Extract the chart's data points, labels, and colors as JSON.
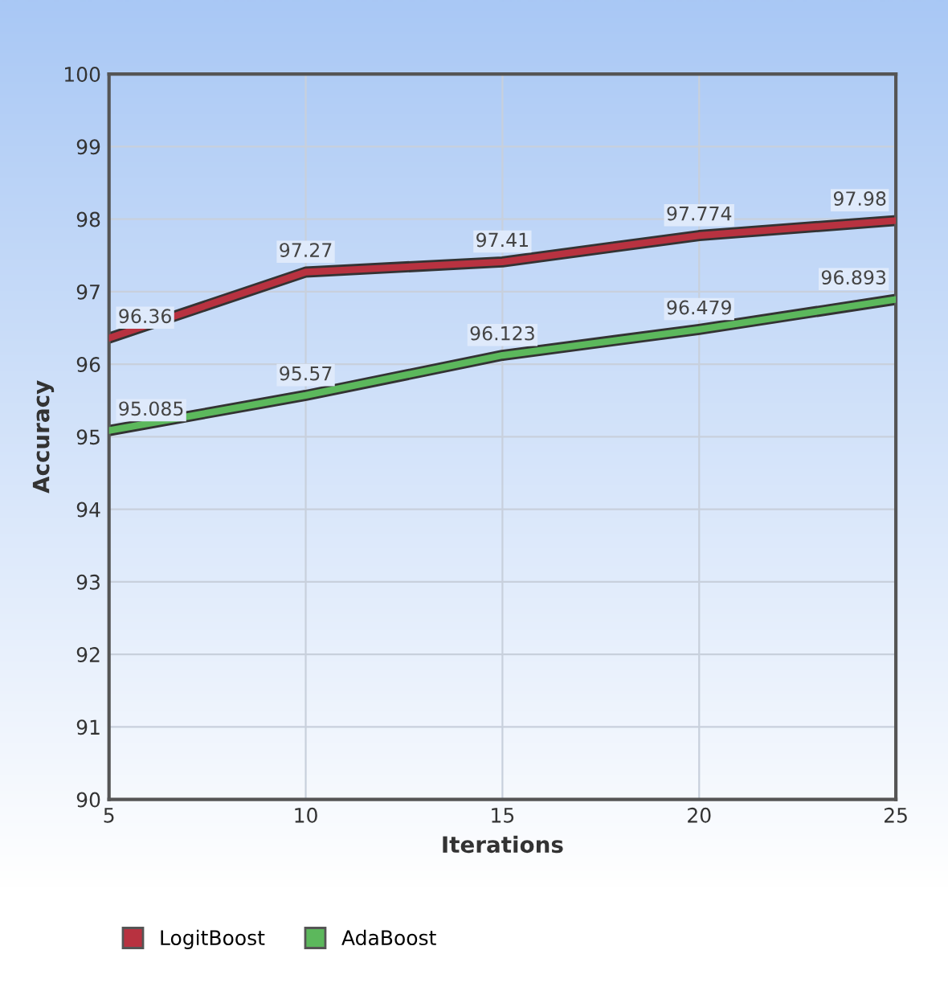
{
  "chart_data": {
    "type": "line",
    "xlabel": "Iterations",
    "ylabel": "Accuracy",
    "x": [
      5,
      10,
      15,
      20,
      25
    ],
    "series": [
      {
        "name": "LogitBoost",
        "color": "#b83240",
        "values": [
          96.36,
          97.27,
          97.41,
          97.774,
          97.98
        ]
      },
      {
        "name": "AdaBoost",
        "color": "#5cb85c",
        "values": [
          95.085,
          95.57,
          96.123,
          96.479,
          96.893
        ]
      }
    ],
    "data_labels": true,
    "xlim": [
      5,
      25
    ],
    "xticks": [
      5,
      10,
      15,
      20,
      25
    ],
    "ylim": [
      90,
      100
    ],
    "yticks": [
      90,
      91,
      92,
      93,
      94,
      95,
      96,
      97,
      98,
      99,
      100
    ],
    "grid": true,
    "legend": "bottom left",
    "marker": "none",
    "line_style": "solid"
  }
}
